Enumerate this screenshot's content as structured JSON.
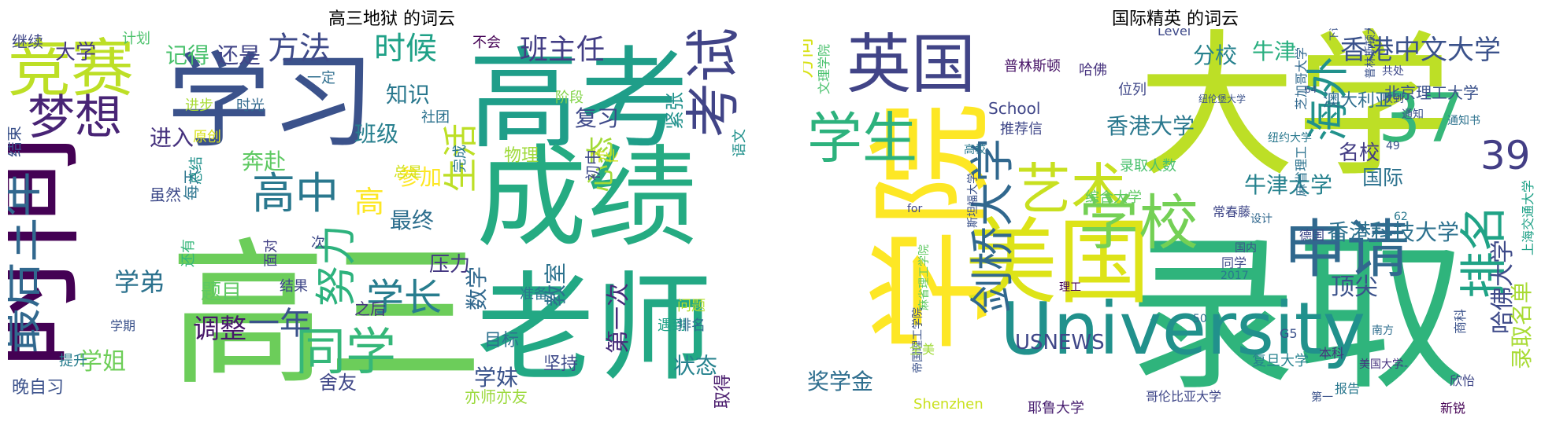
{
  "chart_data": [
    {
      "type": "wordcloud",
      "title": "高三地狱 的词云",
      "words": [
        {
          "text": "学习",
          "weight": 0.88,
          "color": "#3b528b"
        },
        {
          "text": "高三",
          "weight": 0.98,
          "color": "#6ccd5a"
        },
        {
          "text": "时间",
          "weight": 0.7,
          "color": "#440154"
        },
        {
          "text": "高考",
          "weight": 0.85,
          "color": "#1f9e89"
        },
        {
          "text": "成绩",
          "weight": 0.8,
          "color": "#25ab82"
        },
        {
          "text": "老师",
          "weight": 0.9,
          "color": "#22a884"
        },
        {
          "text": "竞赛",
          "weight": 0.55,
          "color": "#bddf26"
        },
        {
          "text": "梦想",
          "weight": 0.4,
          "color": "#482475"
        },
        {
          "text": "考试",
          "weight": 0.5,
          "color": "#414487"
        },
        {
          "text": "最后三年",
          "weight": 0.3,
          "color": "#31688e"
        },
        {
          "text": "同学",
          "weight": 0.38,
          "color": "#35b779"
        },
        {
          "text": "高中",
          "weight": 0.36,
          "color": "#2a788e"
        },
        {
          "text": "方法",
          "weight": 0.26,
          "color": "#3e4a89"
        },
        {
          "text": "时候",
          "weight": 0.26,
          "color": "#1fa187"
        },
        {
          "text": "班主任",
          "weight": 0.24,
          "color": "#433e85"
        },
        {
          "text": "努力",
          "weight": 0.3,
          "color": "#2db27d"
        },
        {
          "text": "学长",
          "weight": 0.28,
          "color": "#287d8e"
        },
        {
          "text": "生活",
          "weight": 0.3,
          "color": "#bddf26"
        },
        {
          "text": "心态",
          "weight": 0.24,
          "color": "#a2da37"
        },
        {
          "text": "一年",
          "weight": 0.25,
          "color": "#3b528b"
        },
        {
          "text": "调整",
          "weight": 0.23,
          "color": "#48186a"
        },
        {
          "text": "学姐",
          "weight": 0.2,
          "color": "#6ece58"
        },
        {
          "text": "学弟",
          "weight": 0.2,
          "color": "#2c728e"
        },
        {
          "text": "大学",
          "weight": 0.18,
          "color": "#443983"
        },
        {
          "text": "记得",
          "weight": 0.18,
          "color": "#4ac16d"
        },
        {
          "text": "还是",
          "weight": 0.18,
          "color": "#414487"
        },
        {
          "text": "知识",
          "weight": 0.18,
          "color": "#2a788e"
        },
        {
          "text": "班级",
          "weight": 0.18,
          "color": "#277f8e"
        },
        {
          "text": "奔赴",
          "weight": 0.17,
          "color": "#5ec962"
        },
        {
          "text": "进入",
          "weight": 0.16,
          "color": "#46327e"
        },
        {
          "text": "复习",
          "weight": 0.16,
          "color": "#3e4989"
        },
        {
          "text": "最终",
          "weight": 0.16,
          "color": "#2e6f8e"
        },
        {
          "text": "参加",
          "weight": 0.15,
          "color": "#fde725"
        },
        {
          "text": "数学",
          "weight": 0.15,
          "color": "#31688e"
        },
        {
          "text": "教室",
          "weight": 0.15,
          "color": "#2c728e"
        },
        {
          "text": "学妹",
          "weight": 0.15,
          "color": "#3a538b"
        },
        {
          "text": "状态",
          "weight": 0.15,
          "color": "#26828e"
        },
        {
          "text": "第一次",
          "weight": 0.15,
          "color": "#472c7a"
        },
        {
          "text": "紧张",
          "weight": 0.14,
          "color": "#21918c"
        },
        {
          "text": "题目",
          "weight": 0.14,
          "color": "#5ec962"
        },
        {
          "text": "舍友",
          "weight": 0.14,
          "color": "#3f4788"
        },
        {
          "text": "压力",
          "weight": 0.14,
          "color": "#453882"
        },
        {
          "text": "晚自习",
          "weight": 0.13,
          "color": "#3b518b"
        },
        {
          "text": "坚持",
          "weight": 0.12,
          "color": "#3e4a89"
        },
        {
          "text": "目标",
          "weight": 0.12,
          "color": "#2d718e"
        },
        {
          "text": "亦师亦友",
          "weight": 0.11,
          "color": "#9bd93c"
        },
        {
          "text": "取得",
          "weight": 0.11,
          "color": "#481a6c"
        },
        {
          "text": "继续",
          "weight": 0.1,
          "color": "#3f4788"
        },
        {
          "text": "计划",
          "weight": 0.1,
          "color": "#4cc26c"
        },
        {
          "text": "不会",
          "weight": 0.1,
          "color": "#440154"
        },
        {
          "text": "一定",
          "weight": 0.1,
          "color": "#2e6e8e"
        },
        {
          "text": "进步",
          "weight": 0.1,
          "color": "#a8db34"
        },
        {
          "text": "时光",
          "weight": 0.1,
          "color": "#31688e"
        },
        {
          "text": "原创",
          "weight": 0.1,
          "color": "#d8e219"
        },
        {
          "text": "社团",
          "weight": 0.1,
          "color": "#2c728e"
        },
        {
          "text": "总是",
          "weight": 0.1,
          "color": "#d0e11c"
        },
        {
          "text": "物理",
          "weight": 0.1,
          "color": "#9fda3a"
        },
        {
          "text": "作业",
          "weight": 0.1,
          "color": "#d2e21b"
        },
        {
          "text": "阶段",
          "weight": 0.1,
          "color": "#84d44b"
        },
        {
          "text": "语文",
          "weight": 0.1,
          "color": "#21918c"
        },
        {
          "text": "完成",
          "weight": 0.1,
          "color": "#2a788e"
        },
        {
          "text": "初中",
          "weight": 0.1,
          "color": "#3e4a89"
        },
        {
          "text": "每天",
          "weight": 0.1,
          "color": "#2b748e"
        },
        {
          "text": "结束",
          "weight": 0.1,
          "color": "#3b528b"
        },
        {
          "text": "虽然",
          "weight": 0.1,
          "color": "#3e4a89"
        },
        {
          "text": "总结",
          "weight": 0.09,
          "color": "#21918c"
        },
        {
          "text": "还有",
          "weight": 0.09,
          "color": "#35b779"
        },
        {
          "text": "面对",
          "weight": 0.09,
          "color": "#424086"
        },
        {
          "text": "学期",
          "weight": 0.09,
          "color": "#3b528b"
        },
        {
          "text": "结果",
          "weight": 0.09,
          "color": "#3f4788"
        },
        {
          "text": "之后",
          "weight": 0.09,
          "color": "#46337f"
        },
        {
          "text": "准备",
          "weight": 0.1,
          "color": "#2a788e"
        },
        {
          "text": "问题",
          "weight": 0.09,
          "color": "#b5de2b"
        },
        {
          "text": "遇到",
          "weight": 0.09,
          "color": "#1fa187"
        },
        {
          "text": "排名",
          "weight": 0.09,
          "color": "#2e6e8e"
        },
        {
          "text": "提升",
          "weight": 0.09,
          "color": "#287d8e"
        },
        {
          "text": "次",
          "weight": 0.09,
          "color": "#3e4a89"
        },
        {
          "text": "高",
          "weight": 0.3,
          "color": "#fde725"
        }
      ]
    },
    {
      "type": "wordcloud",
      "title": "国际精英 的词云",
      "words": [
        {
          "text": "大学",
          "weight": 0.98,
          "color": "#bddf26"
        },
        {
          "text": "录取",
          "weight": 0.98,
          "color": "#2fb47c"
        },
        {
          "text": "学院",
          "weight": 0.78,
          "color": "#fde725"
        },
        {
          "text": "University",
          "weight": 0.55,
          "color": "#21918c"
        },
        {
          "text": "美国",
          "weight": 0.6,
          "color": "#dde318"
        },
        {
          "text": "英国",
          "weight": 0.45,
          "color": "#414487"
        },
        {
          "text": "学生",
          "weight": 0.4,
          "color": "#2db27d"
        },
        {
          "text": "艺术",
          "weight": 0.4,
          "color": "#c8e020"
        },
        {
          "text": "剑桥大学",
          "weight": 0.38,
          "color": "#31688e"
        },
        {
          "text": "学校",
          "weight": 0.38,
          "color": "#74d055"
        },
        {
          "text": "申请",
          "weight": 0.4,
          "color": "#31688e"
        },
        {
          "text": "海外",
          "weight": 0.38,
          "color": "#21918c"
        },
        {
          "text": "37",
          "weight": 0.5,
          "color": "#35b779"
        },
        {
          "text": "39",
          "weight": 0.34,
          "color": "#433e85"
        },
        {
          "text": "排名",
          "weight": 0.4,
          "color": "#20a386"
        },
        {
          "text": "香港中文大学",
          "weight": 0.2,
          "color": "#3b528b"
        },
        {
          "text": "香港大学",
          "weight": 0.16,
          "color": "#2a788e"
        },
        {
          "text": "香港科技大学",
          "weight": 0.16,
          "color": "#2d718e"
        },
        {
          "text": "哈佛大学",
          "weight": 0.18,
          "color": "#3e4a89"
        },
        {
          "text": "录取名单",
          "weight": 0.18,
          "color": "#a8db34"
        },
        {
          "text": "牛津大学",
          "weight": 0.16,
          "color": "#26828e"
        },
        {
          "text": "牛津",
          "weight": 0.16,
          "color": "#29af7f"
        },
        {
          "text": "分校",
          "weight": 0.16,
          "color": "#26818e"
        },
        {
          "text": "方向",
          "weight": 0.14,
          "color": "#d8e219"
        },
        {
          "text": "奖学金",
          "weight": 0.16,
          "color": "#2e6e8e"
        },
        {
          "text": "顶尖",
          "weight": 0.16,
          "color": "#3b528b"
        },
        {
          "text": "USNEWS",
          "weight": 0.14,
          "color": "#3f4788"
        },
        {
          "text": "名校",
          "weight": 0.14,
          "color": "#433d84"
        },
        {
          "text": "国际",
          "weight": 0.14,
          "color": "#2c728e"
        },
        {
          "text": "澳大利亚",
          "weight": 0.11,
          "color": "#2e6e8e"
        },
        {
          "text": "School",
          "weight": 0.1,
          "color": "#404688"
        },
        {
          "text": "推荐信",
          "weight": 0.1,
          "color": "#3f4788"
        },
        {
          "text": "录取人数",
          "weight": 0.1,
          "color": "#4ac16d"
        },
        {
          "text": "综合大学",
          "weight": 0.09,
          "color": "#5ec962"
        },
        {
          "text": "Shenzhen",
          "weight": 0.09,
          "color": "#cae11f"
        },
        {
          "text": "复旦大学",
          "weight": 0.09,
          "color": "#26828e"
        },
        {
          "text": "耶鲁大学",
          "weight": 0.09,
          "color": "#481f70"
        },
        {
          "text": "哥伦比亚大学",
          "weight": 0.08,
          "color": "#3f4788"
        },
        {
          "text": "普林斯顿",
          "weight": 0.09,
          "color": "#481467"
        },
        {
          "text": "哈佛",
          "weight": 0.09,
          "color": "#46327e"
        },
        {
          "text": "位列",
          "weight": 0.09,
          "color": "#3f4788"
        },
        {
          "text": "北京理工大学",
          "weight": 0.09,
          "color": "#3b528b"
        },
        {
          "text": "文理学院",
          "weight": 0.09,
          "color": "#4ac16d"
        },
        {
          "text": "Level",
          "weight": 0.08,
          "color": "#3e4989"
        },
        {
          "text": "芝加哥大学",
          "weight": 0.08,
          "color": "#31688e"
        },
        {
          "text": "纽约大学",
          "weight": 0.08,
          "color": "#2a788e"
        },
        {
          "text": "常春藤",
          "weight": 0.08,
          "color": "#3f4788"
        },
        {
          "text": "斯坦福大学",
          "weight": 0.08,
          "color": "#3b528b"
        },
        {
          "text": "麻省理工学院",
          "weight": 0.08,
          "color": "#5ec962"
        },
        {
          "text": "麻省理工",
          "weight": 0.08,
          "color": "#2c728e"
        },
        {
          "text": "上海交通大学",
          "weight": 0.08,
          "color": "#1fa187"
        },
        {
          "text": "帝国理工学院",
          "weight": 0.08,
          "color": "#3b528b"
        },
        {
          "text": "美国大学",
          "weight": 0.08,
          "color": "#46337f"
        },
        {
          "text": "全美",
          "weight": 0.08,
          "color": "#a0da39"
        },
        {
          "text": "G5",
          "weight": 0.08,
          "color": "#3b528b"
        },
        {
          "text": "南方",
          "weight": 0.07,
          "color": "#2e6e8e"
        },
        {
          "text": "本科",
          "weight": 0.08,
          "color": "#46327e"
        },
        {
          "text": "德国",
          "weight": 0.08,
          "color": "#3e4a89"
        },
        {
          "text": "高校",
          "weight": 0.08,
          "color": "#2a788e"
        },
        {
          "text": "国内",
          "weight": 0.08,
          "color": "#3b528b"
        },
        {
          "text": "设计",
          "weight": 0.08,
          "color": "#31688e"
        },
        {
          "text": "同学",
          "weight": 0.08,
          "color": "#3e4a89"
        },
        {
          "text": "理工",
          "weight": 0.08,
          "color": "#440154"
        },
        {
          "text": "商科",
          "weight": 0.08,
          "color": "#3b528b"
        },
        {
          "text": "欣怡",
          "weight": 0.08,
          "color": "#3f4788"
        },
        {
          "text": "报告",
          "weight": 0.08,
          "color": "#2a788e"
        },
        {
          "text": "新锐",
          "weight": 0.08,
          "color": "#440154"
        },
        {
          "text": "第一",
          "weight": 0.07,
          "color": "#3b528b"
        },
        {
          "text": "通知书",
          "weight": 0.08,
          "color": "#2c728e"
        },
        {
          "text": "通知",
          "weight": 0.07,
          "color": "#3b528b"
        },
        {
          "text": "收到",
          "weight": 0.07,
          "color": "#3b528b"
        },
        {
          "text": "共处",
          "weight": 0.07,
          "color": "#3e4a89"
        },
        {
          "text": "下设",
          "weight": 0.07,
          "color": "#3b528b"
        },
        {
          "text": "64",
          "weight": 0.07,
          "color": "#3b528b"
        },
        {
          "text": "62",
          "weight": 0.08,
          "color": "#2a788e"
        },
        {
          "text": "49",
          "weight": 0.07,
          "color": "#3b528b"
        },
        {
          "text": "50",
          "weight": 0.08,
          "color": "#2e6e8e"
        },
        {
          "text": "2017",
          "weight": 0.07,
          "color": "#2a788e"
        },
        {
          "text": "for",
          "weight": 0.08,
          "color": "#3f4788"
        },
        {
          "text": "--",
          "weight": 0.07,
          "color": "#3b528b"
        },
        {
          "text": "纽伦堡大学",
          "weight": 0.07,
          "color": "#3b528b"
        },
        {
          "text": "普林斯顿大学",
          "weight": 0.07,
          "color": "#3b528b"
        }
      ]
    }
  ]
}
